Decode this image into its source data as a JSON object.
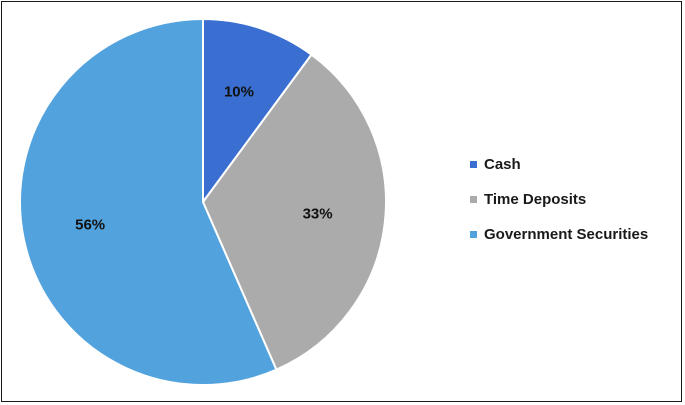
{
  "chart_data": {
    "type": "pie",
    "title": "",
    "slices": [
      {
        "label": "Cash",
        "value": 10,
        "display": "10%",
        "color": "#3a6fd1"
      },
      {
        "label": "Time Deposits",
        "value": 33,
        "display": "33%",
        "color": "#ababab"
      },
      {
        "label": "Government Securities",
        "value": 56,
        "display": "56%",
        "color": "#52a2de"
      }
    ],
    "start_angle": "12 o'clock",
    "direction": "clockwise",
    "data_labels": "inside",
    "legend_position": "right"
  }
}
